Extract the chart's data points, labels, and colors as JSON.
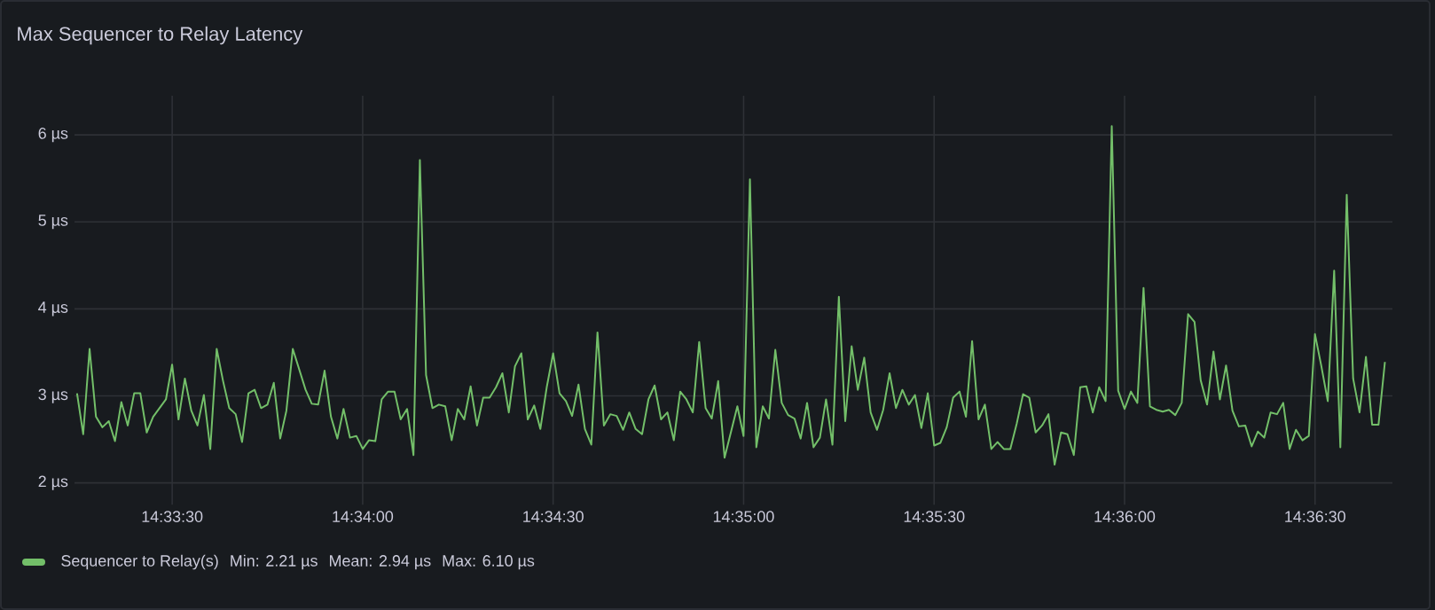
{
  "chart_data": {
    "type": "line",
    "title": "Max Sequencer to Relay Latency",
    "x": [
      14.55417,
      14.55444,
      14.55472,
      14.555,
      14.55528,
      14.55556,
      14.55583,
      14.55611,
      14.55639,
      14.55667,
      14.55694,
      14.55722,
      14.5575,
      14.55806,
      14.55833,
      14.55861,
      14.55889,
      14.55917,
      14.55944,
      14.55972,
      14.56,
      14.56028,
      14.56056,
      14.56083,
      14.56111,
      14.56139,
      14.56167,
      14.56194,
      14.56222,
      14.5625,
      14.56278,
      14.56306,
      14.56333,
      14.56361,
      14.56417,
      14.56444,
      14.56472,
      14.565,
      14.56528,
      14.56556,
      14.56583,
      14.56611,
      14.56639,
      14.56667,
      14.56694,
      14.56722,
      14.5675,
      14.56778,
      14.56806,
      14.56833,
      14.56861,
      14.56889,
      14.56917,
      14.56944,
      14.56972,
      14.57,
      14.57028,
      14.57056,
      14.57083,
      14.57111,
      14.57139,
      14.57167,
      14.57194,
      14.57222,
      14.5725,
      14.57278,
      14.57306,
      14.57333,
      14.57361,
      14.57389,
      14.57417,
      14.57444,
      14.57472,
      14.575,
      14.57528,
      14.57556,
      14.57583,
      14.57611,
      14.57639,
      14.57667,
      14.57694,
      14.57722,
      14.5775,
      14.57778,
      14.57806,
      14.57833,
      14.57861,
      14.57889,
      14.57917,
      14.57944,
      14.57972,
      14.58,
      14.58028,
      14.58056,
      14.58083,
      14.58111,
      14.58139,
      14.58167,
      14.58194,
      14.58222,
      14.5825,
      14.58306,
      14.58333,
      14.58361,
      14.58389,
      14.58417,
      14.58444,
      14.58472,
      14.585,
      14.58528,
      14.58556,
      14.58583,
      14.58611,
      14.58639,
      14.58667,
      14.58694,
      14.58722,
      14.5875,
      14.58778,
      14.58806,
      14.58833,
      14.58861,
      14.58889,
      14.58917,
      14.58944,
      14.58972,
      14.59,
      14.59028,
      14.59056,
      14.59083,
      14.59111,
      14.59139,
      14.59167,
      14.59194,
      14.59222,
      14.5925,
      14.59278,
      14.59306,
      14.59333,
      14.59361,
      14.59389,
      14.59417,
      14.59444,
      14.59472,
      14.595,
      14.59528,
      14.59556,
      14.59583,
      14.59611,
      14.59639,
      14.59667,
      14.59694,
      14.59722,
      14.5975,
      14.59778,
      14.59806,
      14.59833,
      14.59861,
      14.59889,
      14.59917,
      14.59944,
      14.59972,
      14.6,
      14.60028,
      14.60056,
      14.60083,
      14.60111,
      14.60139,
      14.60167,
      14.60194,
      14.60222,
      14.6025,
      14.60278,
      14.60306,
      14.60333,
      14.60361,
      14.60389,
      14.60417,
      14.60444,
      14.60472,
      14.605,
      14.60528,
      14.60556,
      14.60583,
      14.60611,
      14.60639,
      14.60667,
      14.60694,
      14.60722,
      14.6075,
      14.60778,
      14.60806,
      14.60833,
      14.60861,
      14.60889,
      14.60917,
      14.60944,
      14.60972,
      14.61,
      14.61028,
      14.61056,
      14.61083,
      14.61111,
      14.61139
    ],
    "series": [
      {
        "name": "Sequencer to Relay(s)",
        "color": "#73bf69",
        "values": [
          3.03,
          2.56,
          3.54,
          2.76,
          2.64,
          2.71,
          2.48,
          2.93,
          2.66,
          3.03,
          3.03,
          2.58,
          2.76,
          2.96,
          3.36,
          2.73,
          3.2,
          2.83,
          2.66,
          3.01,
          2.39,
          3.54,
          3.17,
          2.86,
          2.79,
          2.47,
          3.03,
          3.07,
          2.86,
          2.9,
          3.15,
          2.51,
          2.83,
          3.54,
          3.07,
          2.91,
          2.9,
          3.29,
          2.76,
          2.51,
          2.85,
          2.52,
          2.54,
          2.39,
          2.49,
          2.48,
          2.96,
          3.05,
          3.05,
          2.73,
          2.85,
          2.32,
          5.71,
          3.24,
          2.86,
          2.9,
          2.88,
          2.49,
          2.85,
          2.73,
          3.11,
          2.66,
          2.98,
          2.98,
          3.1,
          3.26,
          2.81,
          3.34,
          3.49,
          2.73,
          2.89,
          2.62,
          3.1,
          3.49,
          3.03,
          2.94,
          2.77,
          3.13,
          2.62,
          2.44,
          3.73,
          2.66,
          2.79,
          2.77,
          2.61,
          2.81,
          2.62,
          2.56,
          2.96,
          3.12,
          2.73,
          2.81,
          2.49,
          3.05,
          2.96,
          2.81,
          3.62,
          2.86,
          2.74,
          3.17,
          2.29,
          2.88,
          2.54,
          5.49,
          2.41,
          2.88,
          2.74,
          3.53,
          2.92,
          2.78,
          2.74,
          2.51,
          2.92,
          2.41,
          2.52,
          2.96,
          2.44,
          4.14,
          2.71,
          3.57,
          3.07,
          3.44,
          2.81,
          2.61,
          2.84,
          3.26,
          2.86,
          3.07,
          2.9,
          3.01,
          2.63,
          3.03,
          2.43,
          2.46,
          2.64,
          2.98,
          3.05,
          2.76,
          3.63,
          2.73,
          2.9,
          2.39,
          2.47,
          2.39,
          2.39,
          2.68,
          3.02,
          2.98,
          2.58,
          2.66,
          2.79,
          2.21,
          2.58,
          2.56,
          2.32,
          3.1,
          3.11,
          2.81,
          3.1,
          2.94,
          6.1,
          3.06,
          2.85,
          3.05,
          2.92,
          4.24,
          2.88,
          2.84,
          2.82,
          2.84,
          2.78,
          2.92,
          3.94,
          3.85,
          3.18,
          2.9,
          3.51,
          2.96,
          3.35,
          2.83,
          2.65,
          2.66,
          2.42,
          2.59,
          2.52,
          2.81,
          2.79,
          2.92,
          2.39,
          2.61,
          2.49,
          2.54,
          3.71,
          3.34,
          2.94,
          4.44,
          2.41,
          5.31,
          3.2,
          2.81,
          3.45,
          2.67,
          2.67,
          3.39
        ]
      }
    ],
    "xlim": [
      14.55406,
      14.61172
    ],
    "xticks": [
      {
        "value": 14.558333,
        "label": "14:33:30"
      },
      {
        "value": 14.566667,
        "label": "14:34:00"
      },
      {
        "value": 14.575,
        "label": "14:34:30"
      },
      {
        "value": 14.583333,
        "label": "14:35:00"
      },
      {
        "value": 14.591667,
        "label": "14:35:30"
      },
      {
        "value": 14.6,
        "label": "14:36:00"
      },
      {
        "value": 14.608333,
        "label": "14:36:30"
      }
    ],
    "ylim": [
      1.75,
      6.45
    ],
    "yticks": [
      {
        "value": 2,
        "label": "2 µs"
      },
      {
        "value": 3,
        "label": "3 µs"
      },
      {
        "value": 4,
        "label": "4 µs"
      },
      {
        "value": 5,
        "label": "5 µs"
      },
      {
        "value": 6,
        "label": "6 µs"
      }
    ],
    "grid": true,
    "legend": "bottom",
    "annotations": [
      "Min: 2.21 µs",
      "Mean: 2.94 µs",
      "Max: 6.10 µs"
    ]
  }
}
